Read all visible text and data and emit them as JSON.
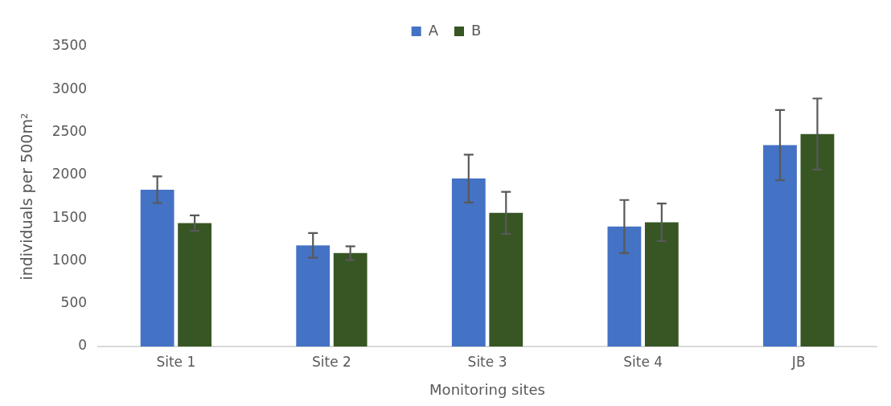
{
  "chart_data": {
    "type": "bar",
    "xlabel": "Monitoring sites",
    "ylabel": "individuals per 500m²",
    "categories": [
      "Site 1",
      "Site 2",
      "Site 3",
      "Site 4",
      "JB"
    ],
    "series": [
      {
        "name": "A",
        "color": "#4472c4",
        "values": [
          1830,
          1180,
          1960,
          1400,
          2350
        ],
        "errors": [
          155,
          145,
          280,
          310,
          410
        ]
      },
      {
        "name": "B",
        "color": "#375623",
        "values": [
          1440,
          1090,
          1560,
          1450,
          2480
        ],
        "errors": [
          90,
          80,
          245,
          220,
          415
        ]
      }
    ],
    "ylim": [
      0,
      3500
    ],
    "yticks": [
      0,
      500,
      1000,
      1500,
      2000,
      2500,
      3000,
      3500
    ],
    "grid": false,
    "legend": "top"
  }
}
